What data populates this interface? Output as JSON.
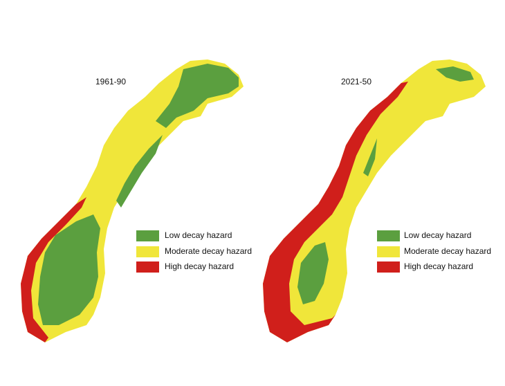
{
  "panels": [
    {
      "title": "1961-90",
      "legend": [
        {
          "label": "Low decay hazard",
          "color": "#5b9f3f"
        },
        {
          "label": "Moderate decay hazard",
          "color": "#f0e63a"
        },
        {
          "label": "High decay hazard",
          "color": "#d01f1b"
        }
      ]
    },
    {
      "title": "2021-50",
      "legend": [
        {
          "label": "Low decay hazard",
          "color": "#5b9f3f"
        },
        {
          "label": "Moderate decay hazard",
          "color": "#f0e63a"
        },
        {
          "label": "High decay hazard",
          "color": "#d01f1b"
        }
      ]
    }
  ]
}
